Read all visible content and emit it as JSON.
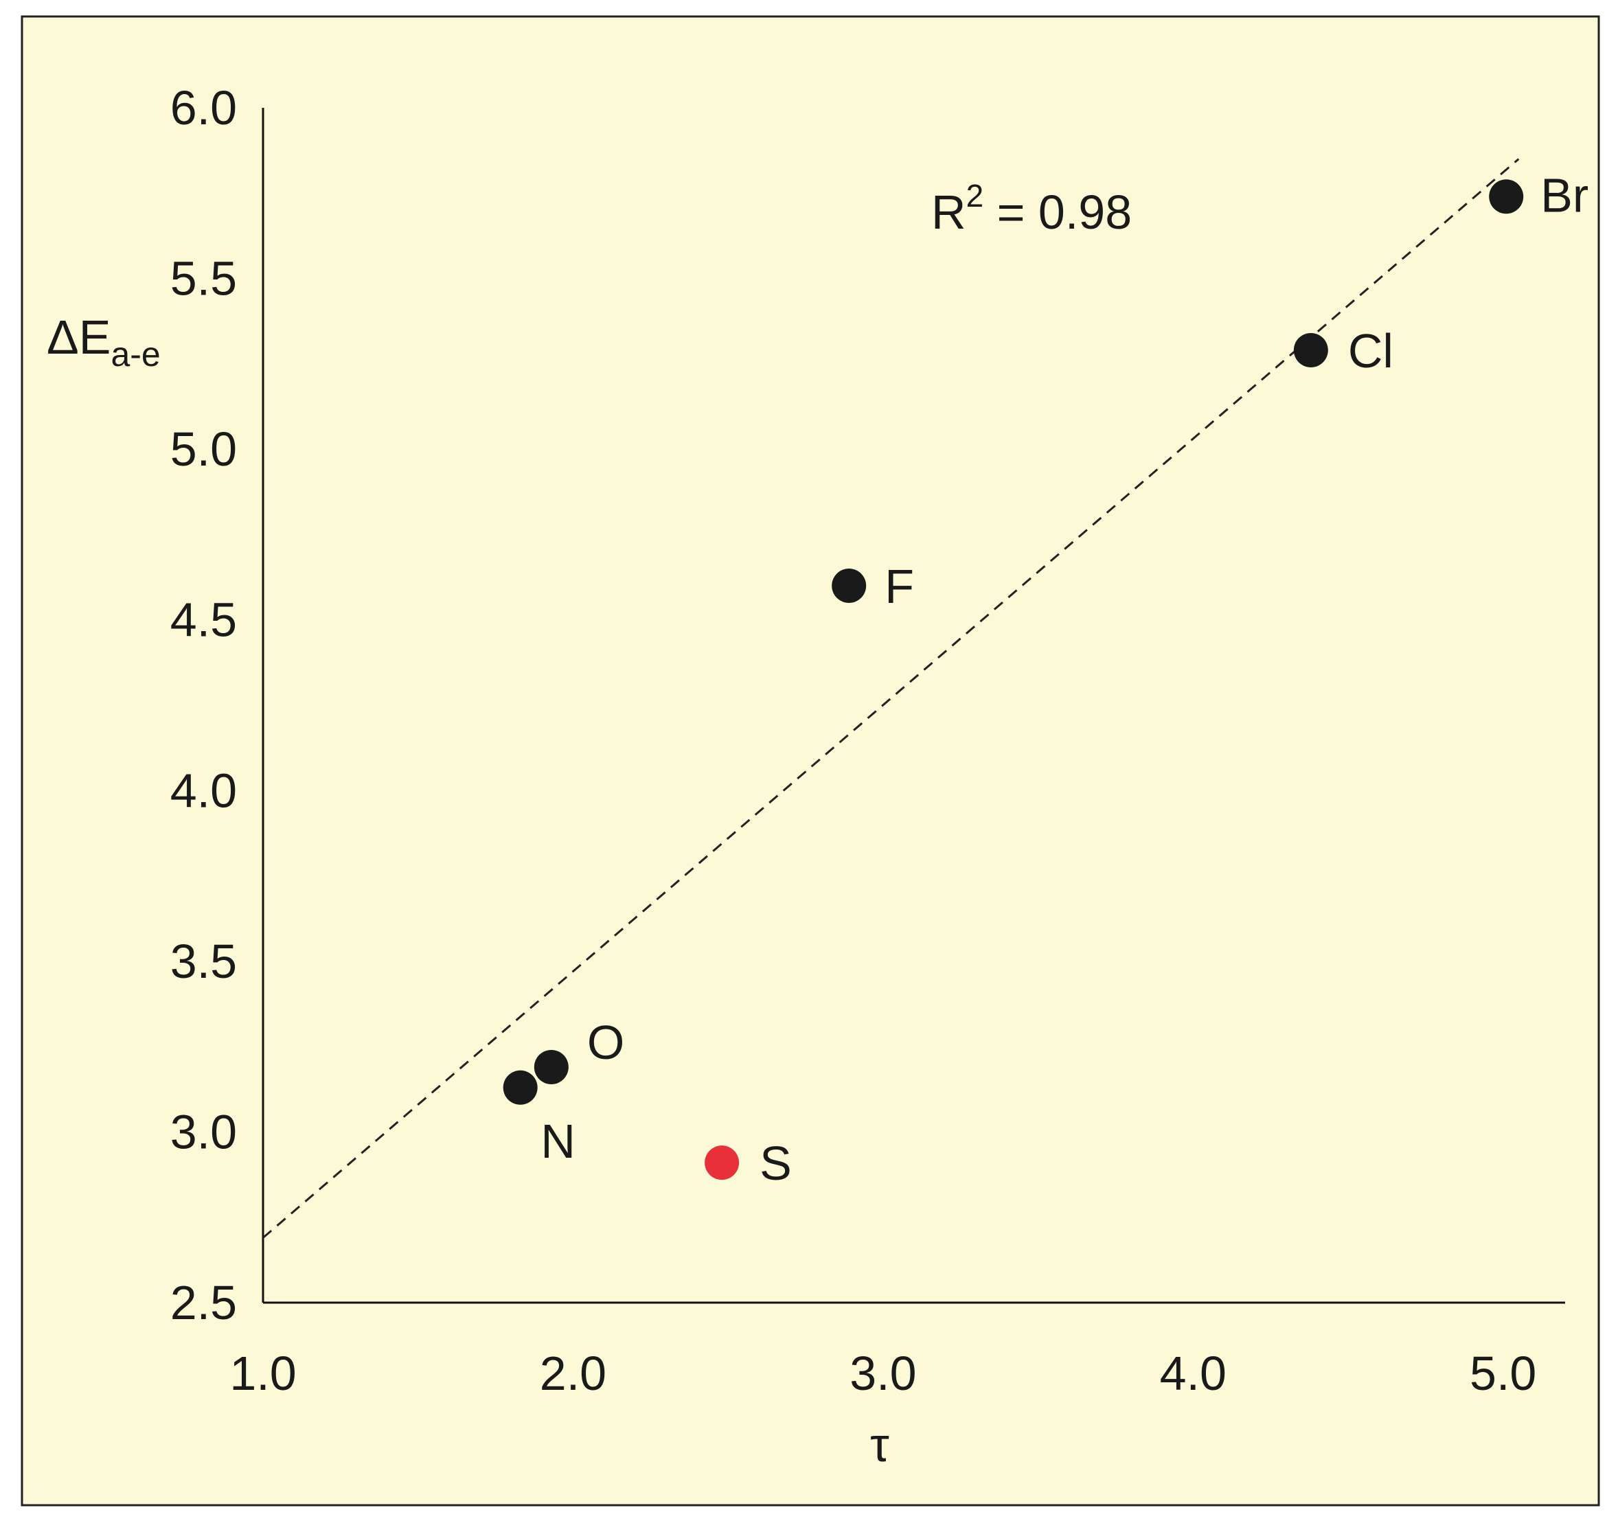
{
  "chart_data": {
    "type": "scatter",
    "title": "",
    "xlabel": "τ",
    "ylabel": {
      "main": "ΔE",
      "subscript": "a-e"
    },
    "xlim": [
      1.0,
      5.2
    ],
    "ylim": [
      2.5,
      6.0
    ],
    "x_ticks": [
      "1.0",
      "2.0",
      "3.0",
      "4.0",
      "5.0"
    ],
    "y_ticks": [
      "2.5",
      "3.0",
      "3.5",
      "4.0",
      "4.5",
      "5.0",
      "5.5",
      "6.0"
    ],
    "grid": false,
    "background_color": "#fcf9d6",
    "point_color": "#1a1a1a",
    "highlight_color": "#e8303a",
    "points": [
      {
        "label": "N",
        "x": 1.83,
        "y": 3.13,
        "highlight": false
      },
      {
        "label": "O",
        "x": 1.93,
        "y": 3.19,
        "highlight": false
      },
      {
        "label": "S",
        "x": 2.48,
        "y": 2.91,
        "highlight": true
      },
      {
        "label": "F",
        "x": 2.89,
        "y": 4.6,
        "highlight": false
      },
      {
        "label": "Cl",
        "x": 4.38,
        "y": 5.29,
        "highlight": false
      },
      {
        "label": "Br",
        "x": 5.01,
        "y": 5.74,
        "highlight": false
      }
    ],
    "trendline": {
      "style": "dashed",
      "x": [
        1.0,
        5.05
      ],
      "y": [
        2.69,
        5.85
      ]
    },
    "annotation": {
      "main": "R",
      "superscript": "2",
      "rest": " = 0.98"
    }
  }
}
